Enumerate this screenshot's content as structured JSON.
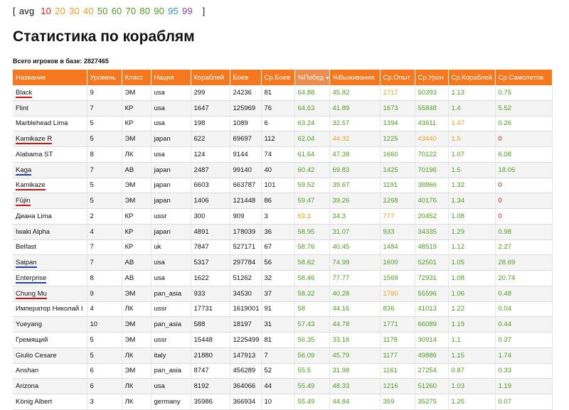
{
  "avg": {
    "open": "[",
    "label": "avg",
    "close": "]",
    "items": [
      {
        "label": "10",
        "color": "#e02020"
      },
      {
        "label": "20",
        "color": "#f0a020"
      },
      {
        "label": "30",
        "color": "#f0a020"
      },
      {
        "label": "40",
        "color": "#f0a020"
      },
      {
        "label": "50",
        "color": "#4d9e1f"
      },
      {
        "label": "60",
        "color": "#4d9e1f"
      },
      {
        "label": "70",
        "color": "#4d9e1f"
      },
      {
        "label": "80",
        "color": "#4d9e1f"
      },
      {
        "label": "90",
        "color": "#4d9e1f"
      },
      {
        "label": "95",
        "color": "#2a9fb0"
      },
      {
        "label": "99",
        "color": "#9b3fb0"
      }
    ]
  },
  "page_title": "Статистика по кораблям",
  "total_players": "Всего игроков в базе: 2827465",
  "table": {
    "headers": [
      "Название",
      "Уровень",
      "Класс",
      "Нация",
      "Кораблей",
      "Боев",
      "Ср.Боев",
      "%Побед",
      "%Выживания",
      "Ср.Опыт",
      "Ср.Урон",
      "Ср.Кораблей",
      "Ср.Самолетов"
    ],
    "sort_arrow": "▼",
    "rows": [
      {
        "name": "Black",
        "level": "9",
        "cls": "ЭМ",
        "nation": "usa",
        "ships": "299",
        "battles": "24236",
        "avg_battles": "81",
        "win": "64.88",
        "surv": "45.82",
        "xp": "1717",
        "dmg": "50393",
        "kills": "1.13",
        "planes": "0.75",
        "c": [
          "g",
          "g",
          "o",
          "g",
          "g",
          "g"
        ],
        "mark": "red"
      },
      {
        "name": "Flint",
        "level": "7",
        "cls": "КР",
        "nation": "usa",
        "ships": "1647",
        "battles": "125969",
        "avg_battles": "76",
        "win": "64.63",
        "surv": "41.89",
        "xp": "1673",
        "dmg": "55848",
        "kills": "1.4",
        "planes": "5.52",
        "c": [
          "g",
          "g",
          "g",
          "g",
          "g",
          "g"
        ],
        "mark": ""
      },
      {
        "name": "Marblehead Lima",
        "level": "5",
        "cls": "КР",
        "nation": "usa",
        "ships": "198",
        "battles": "1089",
        "avg_battles": "6",
        "win": "63.24",
        "surv": "32.57",
        "xp": "1394",
        "dmg": "43611",
        "kills": "1.47",
        "planes": "0.26",
        "c": [
          "g",
          "g",
          "g",
          "g",
          "o",
          "g"
        ],
        "mark": ""
      },
      {
        "name": "Kamikaze R",
        "level": "5",
        "cls": "ЭМ",
        "nation": "japan",
        "ships": "622",
        "battles": "69697",
        "avg_battles": "112",
        "win": "62.04",
        "surv": "44.32",
        "xp": "1225",
        "dmg": "43440",
        "kills": "1.5",
        "planes": "0",
        "c": [
          "g",
          "o",
          "g",
          "o",
          "o",
          "r"
        ],
        "mark": "red"
      },
      {
        "name": "Alabama ST",
        "level": "8",
        "cls": "ЛК",
        "nation": "usa",
        "ships": "124",
        "battles": "9144",
        "avg_battles": "74",
        "win": "61.64",
        "surv": "47.38",
        "xp": "1660",
        "dmg": "70122",
        "kills": "1.07",
        "planes": "6.08",
        "c": [
          "g",
          "g",
          "g",
          "g",
          "g",
          "g"
        ],
        "mark": ""
      },
      {
        "name": "Kaga",
        "level": "7",
        "cls": "АВ",
        "nation": "japan",
        "ships": "2487",
        "battles": "99140",
        "avg_battles": "40",
        "win": "60.42",
        "surv": "69.83",
        "xp": "1425",
        "dmg": "70196",
        "kills": "1.5",
        "planes": "18.05",
        "c": [
          "g",
          "g",
          "g",
          "g",
          "g",
          "g"
        ],
        "mark": "blue"
      },
      {
        "name": "Kamikaze",
        "level": "5",
        "cls": "ЭМ",
        "nation": "japan",
        "ships": "6603",
        "battles": "663787",
        "avg_battles": "101",
        "win": "59.52",
        "surv": "39.67",
        "xp": "1191",
        "dmg": "38866",
        "kills": "1.32",
        "planes": "0",
        "c": [
          "g",
          "g",
          "g",
          "g",
          "g",
          "r"
        ],
        "mark": "red"
      },
      {
        "name": "Fūjin",
        "level": "5",
        "cls": "ЭМ",
        "nation": "japan",
        "ships": "1406",
        "battles": "121448",
        "avg_battles": "86",
        "win": "59.47",
        "surv": "39.26",
        "xp": "1268",
        "dmg": "40176",
        "kills": "1.34",
        "planes": "0",
        "c": [
          "g",
          "g",
          "g",
          "g",
          "g",
          "r"
        ],
        "mark": "red"
      },
      {
        "name": "Диана Lima",
        "level": "2",
        "cls": "КР",
        "nation": "ussr",
        "ships": "300",
        "battles": "909",
        "avg_battles": "3",
        "win": "59.3",
        "surv": "34.3",
        "xp": "777",
        "dmg": "20452",
        "kills": "1.08",
        "planes": "0",
        "c": [
          "o",
          "g",
          "o",
          "g",
          "g",
          "r"
        ],
        "mark": ""
      },
      {
        "name": "Iwaki Alpha",
        "level": "4",
        "cls": "КР",
        "nation": "japan",
        "ships": "4891",
        "battles": "178039",
        "avg_battles": "36",
        "win": "58.95",
        "surv": "31.07",
        "xp": "933",
        "dmg": "34335",
        "kills": "1.29",
        "planes": "0.98",
        "c": [
          "g",
          "g",
          "g",
          "g",
          "g",
          "g"
        ],
        "mark": ""
      },
      {
        "name": "Belfast",
        "level": "7",
        "cls": "КР",
        "nation": "uk",
        "ships": "7847",
        "battles": "527171",
        "avg_battles": "67",
        "win": "58.76",
        "surv": "40.45",
        "xp": "1484",
        "dmg": "48519",
        "kills": "1.12",
        "planes": "2.27",
        "c": [
          "g",
          "g",
          "g",
          "g",
          "g",
          "g"
        ],
        "mark": ""
      },
      {
        "name": "Saipan",
        "level": "7",
        "cls": "АВ",
        "nation": "usa",
        "ships": "5317",
        "battles": "297784",
        "avg_battles": "56",
        "win": "58.62",
        "surv": "74.99",
        "xp": "1600",
        "dmg": "52501",
        "kills": "1.05",
        "planes": "28.69",
        "c": [
          "g",
          "g",
          "g",
          "g",
          "g",
          "g"
        ],
        "mark": "blue"
      },
      {
        "name": "Enterprise",
        "level": "8",
        "cls": "АВ",
        "nation": "usa",
        "ships": "1622",
        "battles": "51262",
        "avg_battles": "32",
        "win": "58.46",
        "surv": "77.77",
        "xp": "1569",
        "dmg": "72931",
        "kills": "1.08",
        "planes": "20.74",
        "c": [
          "g",
          "g",
          "g",
          "g",
          "g",
          "g"
        ],
        "mark": "blue"
      },
      {
        "name": "Chung Mu",
        "level": "9",
        "cls": "ЭМ",
        "nation": "pan_asia",
        "ships": "933",
        "battles": "34530",
        "avg_battles": "37",
        "win": "58.32",
        "surv": "40.28",
        "xp": "1780",
        "dmg": "55596",
        "kills": "1.06",
        "planes": "0.48",
        "c": [
          "g",
          "g",
          "o",
          "g",
          "g",
          "g"
        ],
        "mark": "red"
      },
      {
        "name": "Император Николай I",
        "level": "4",
        "cls": "ЛК",
        "nation": "ussr",
        "ships": "17731",
        "battles": "1619001",
        "avg_battles": "91",
        "win": "58",
        "surv": "44.16",
        "xp": "836",
        "dmg": "41013",
        "kills": "1.22",
        "planes": "0.04",
        "c": [
          "g",
          "g",
          "g",
          "g",
          "g",
          "g"
        ],
        "mark": ""
      },
      {
        "name": "Yueyang",
        "level": "10",
        "cls": "ЭМ",
        "nation": "pan_asia",
        "ships": "588",
        "battles": "18197",
        "avg_battles": "31",
        "win": "57.43",
        "surv": "44.78",
        "xp": "1771",
        "dmg": "66089",
        "kills": "1.19",
        "planes": "0.44",
        "c": [
          "g",
          "g",
          "g",
          "g",
          "g",
          "g"
        ],
        "mark": ""
      },
      {
        "name": "Гремящий",
        "level": "5",
        "cls": "ЭМ",
        "nation": "ussr",
        "ships": "15448",
        "battles": "1225499",
        "avg_battles": "81",
        "win": "56.35",
        "surv": "33.16",
        "xp": "1178",
        "dmg": "30914",
        "kills": "1.1",
        "planes": "0.37",
        "c": [
          "g",
          "g",
          "g",
          "g",
          "g",
          "g"
        ],
        "mark": ""
      },
      {
        "name": "Giulio Cesare",
        "level": "5",
        "cls": "ЛК",
        "nation": "italy",
        "ships": "21880",
        "battles": "147913",
        "avg_battles": "7",
        "win": "56.09",
        "surv": "45.79",
        "xp": "1177",
        "dmg": "49886",
        "kills": "1.15",
        "planes": "1.74",
        "c": [
          "g",
          "g",
          "g",
          "g",
          "g",
          "g"
        ],
        "mark": ""
      },
      {
        "name": "Anshan",
        "level": "6",
        "cls": "ЭМ",
        "nation": "pan_asia",
        "ships": "8747",
        "battles": "456289",
        "avg_battles": "52",
        "win": "55.5",
        "surv": "31.98",
        "xp": "1161",
        "dmg": "27254",
        "kills": "0.87",
        "planes": "0.33",
        "c": [
          "g",
          "g",
          "g",
          "g",
          "g",
          "g"
        ],
        "mark": ""
      },
      {
        "name": "Arizona",
        "level": "6",
        "cls": "ЛК",
        "nation": "usa",
        "ships": "8192",
        "battles": "364066",
        "avg_battles": "44",
        "win": "55.49",
        "surv": "48.33",
        "xp": "1216",
        "dmg": "51260",
        "kills": "1.03",
        "planes": "1.19",
        "c": [
          "g",
          "g",
          "g",
          "g",
          "g",
          "g"
        ],
        "mark": ""
      },
      {
        "name": "König Albert",
        "level": "3",
        "cls": "ЛК",
        "nation": "germany",
        "ships": "35986",
        "battles": "366934",
        "avg_battles": "10",
        "win": "55.49",
        "surv": "44.84",
        "xp": "359",
        "dmg": "35275",
        "kills": "1.25",
        "planes": "0.07",
        "c": [
          "g",
          "g",
          "g",
          "g",
          "g",
          "g"
        ],
        "mark": ""
      }
    ]
  }
}
